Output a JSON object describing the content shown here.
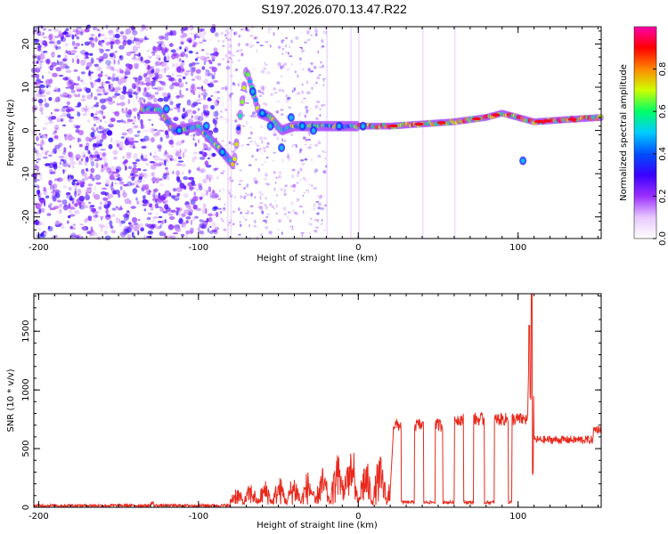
{
  "title": "S197.2026.070.13.47.R22",
  "chart_data": [
    {
      "type": "heatmap",
      "xlabel": "Height of straight line (km)",
      "ylabel": "Frequency (Hz)",
      "xlim": [
        -203,
        152
      ],
      "ylim": [
        -25,
        24
      ],
      "xticks": [
        -200,
        -100,
        0,
        100
      ],
      "xtick_labels": [
        "-200",
        "-100",
        "0",
        "100"
      ],
      "yticks": [
        -20,
        -10,
        0,
        10,
        20
      ],
      "ytick_labels": [
        "-20",
        "-10",
        "0",
        "10",
        "20"
      ],
      "colorbar": {
        "label": "Normalized spectral amplitude",
        "range": [
          0,
          1
        ],
        "ticks": [
          0.0,
          0.2,
          0.4,
          0.6,
          0.8
        ],
        "tick_labels": [
          "0.0",
          "0.2",
          "0.4",
          "0.6",
          "0.8"
        ],
        "colors": [
          "#ffffff",
          "#e8c8ff",
          "#9b30ff",
          "#3a00ff",
          "#0050ff",
          "#00ccff",
          "#00ff66",
          "#ccff00",
          "#ff8800",
          "#ff0000",
          "#ff00aa"
        ]
      },
      "ridge": {
        "x": [
          -135,
          -125,
          -115,
          -100,
          -85,
          -78,
          -70,
          -62,
          -55,
          -48,
          -40,
          -30,
          -20,
          -10,
          0,
          20,
          40,
          60,
          80,
          90,
          100,
          110,
          130,
          152
        ],
        "y": [
          5,
          5,
          0,
          1,
          -5,
          -8,
          14,
          4,
          3,
          0,
          1,
          1,
          1,
          1,
          1,
          1,
          1.5,
          2,
          3,
          4,
          3,
          2,
          2.5,
          3
        ]
      }
    },
    {
      "type": "line",
      "xlabel": "Height of straight line (km)",
      "ylabel": "SNR (10 * v/v)",
      "xlim": [
        -203,
        152
      ],
      "ylim": [
        0,
        1820
      ],
      "xticks": [
        -200,
        -100,
        0,
        100
      ],
      "xtick_labels": [
        "-200",
        "-100",
        "0",
        "100"
      ],
      "yticks": [
        0,
        500,
        1000,
        1500
      ],
      "ytick_labels": [
        "0",
        "500",
        "1000",
        "1500"
      ],
      "color": "#e8291c",
      "segments": [
        {
          "x": [
            -203,
            -80
          ],
          "base": 15
        },
        {
          "x": [
            -80,
            20
          ],
          "base": 120
        },
        {
          "x": [
            20,
            150
          ],
          "base": 700
        }
      ],
      "dips": [
        [
          27,
          35
        ],
        [
          41,
          48
        ],
        [
          53,
          60
        ],
        [
          66,
          72
        ],
        [
          79,
          85
        ],
        [
          94,
          96
        ]
      ],
      "spikes": [
        [
          107,
          1550
        ],
        [
          108.5,
          1820
        ]
      ]
    }
  ]
}
